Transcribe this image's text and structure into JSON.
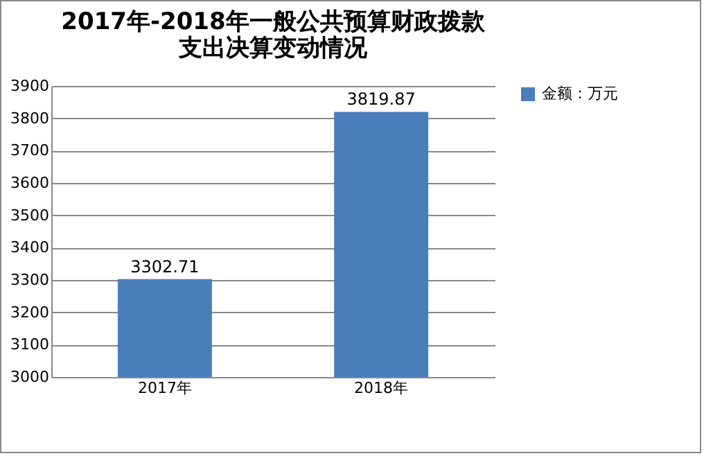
{
  "chart_data": {
    "type": "bar",
    "title": "2017年-2018年一般公共预算财政拨款支出决算变动情况",
    "categories": [
      "2017年",
      "2018年"
    ],
    "series": [
      {
        "name": "金额：万元",
        "color": "#4a7ebb",
        "values": [
          3302.71,
          3819.87
        ]
      }
    ],
    "ylim": [
      3000,
      3900
    ],
    "yticks": [
      3000,
      3100,
      3200,
      3300,
      3400,
      3500,
      3600,
      3700,
      3800,
      3900
    ],
    "grid": "y",
    "legend": "right",
    "data_labels": true
  }
}
